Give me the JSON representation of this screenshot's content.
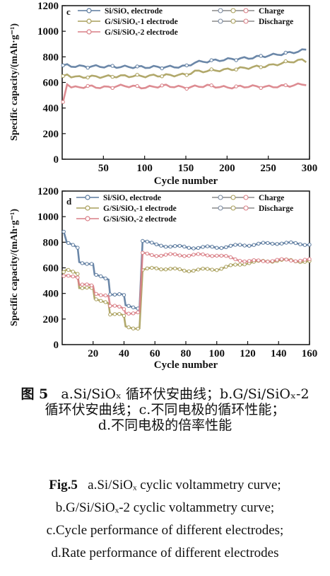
{
  "chart_data": [
    {
      "type": "line",
      "panel_label": "c",
      "xlabel": "Cycle number",
      "ylabel": "Specific capacity/(mAh·g⁻¹)",
      "xlim": [
        0,
        300
      ],
      "ylim": [
        0,
        1200
      ],
      "xticks": [
        50,
        100,
        150,
        200,
        250,
        300
      ],
      "yticks": [
        0,
        200,
        400,
        600,
        800,
        1000,
        1200
      ],
      "legend_placement": "top",
      "legend": {
        "electrodes": [
          "Si/SiOₓ electrode",
          "G/Si/SiOₓ-1 electrode",
          "G/Si/SiOₓ-2 electrode"
        ],
        "modes": [
          "Charge",
          "Discharge"
        ]
      },
      "colors": {
        "blue": "#5b7a9e",
        "olive": "#a99f5b",
        "pink": "#d97f86"
      },
      "series": [
        {
          "color": "blue",
          "x": [
            1,
            5,
            10,
            20,
            30,
            50,
            75,
            100,
            125,
            150,
            160,
            175,
            200,
            225,
            250,
            275,
            300
          ],
          "y": [
            730,
            735,
            730,
            725,
            725,
            725,
            722,
            720,
            720,
            725,
            755,
            765,
            780,
            790,
            810,
            830,
            860
          ]
        },
        {
          "color": "olive",
          "x": [
            1,
            5,
            10,
            20,
            30,
            50,
            75,
            100,
            125,
            150,
            160,
            175,
            200,
            225,
            250,
            275,
            290,
            300
          ],
          "y": [
            640,
            665,
            650,
            640,
            645,
            645,
            650,
            650,
            655,
            660,
            685,
            690,
            700,
            715,
            730,
            760,
            775,
            760
          ]
        },
        {
          "color": "pink",
          "x": [
            1,
            3,
            5,
            8,
            12,
            20,
            30,
            50,
            75,
            100,
            125,
            150,
            175,
            200,
            225,
            250,
            275,
            300
          ],
          "y": [
            440,
            540,
            600,
            580,
            560,
            560,
            570,
            560,
            575,
            560,
            575,
            560,
            575,
            560,
            570,
            565,
            575,
            590
          ]
        }
      ]
    },
    {
      "type": "line",
      "panel_label": "d",
      "xlabel": "Cycle number",
      "ylabel": "Specific capacity/(mAh·g⁻¹)",
      "xlim": [
        0,
        160
      ],
      "ylim": [
        0,
        1200
      ],
      "xticks": [
        20,
        40,
        60,
        80,
        100,
        120,
        140,
        160
      ],
      "yticks": [
        0,
        200,
        400,
        600,
        800,
        1000,
        1200
      ],
      "legend_placement": "top",
      "legend": {
        "electrodes": [
          "Si/SiOₓ electrode",
          "G/Si/SiOₓ-1 electrode",
          "G/Si/SiOₓ-2 electrode"
        ],
        "modes": [
          "Charge",
          "Discharge"
        ]
      },
      "colors": {
        "blue": "#5b7a9e",
        "olive": "#a99f5b",
        "pink": "#d97f86"
      },
      "series": [
        {
          "color": "blue",
          "x": [
            1,
            3,
            8,
            10,
            11,
            18,
            20,
            21,
            28,
            30,
            31,
            38,
            40,
            41,
            49,
            50,
            52,
            60,
            80,
            100,
            120,
            140,
            160
          ],
          "y": [
            880,
            790,
            770,
            760,
            650,
            630,
            625,
            540,
            520,
            515,
            400,
            390,
            380,
            300,
            290,
            290,
            815,
            780,
            760,
            760,
            780,
            795,
            785
          ]
        },
        {
          "color": "olive",
          "x": [
            1,
            3,
            8,
            10,
            11,
            18,
            20,
            21,
            28,
            30,
            31,
            38,
            40,
            41,
            49,
            50,
            52,
            60,
            80,
            100,
            120,
            140,
            160
          ],
          "y": [
            560,
            580,
            570,
            560,
            450,
            440,
            430,
            350,
            340,
            330,
            240,
            230,
            220,
            140,
            130,
            130,
            580,
            600,
            580,
            590,
            640,
            660,
            650
          ]
        },
        {
          "color": "pink",
          "x": [
            1,
            3,
            8,
            10,
            11,
            18,
            20,
            21,
            28,
            30,
            31,
            38,
            40,
            41,
            49,
            50,
            52,
            60,
            80,
            100,
            120,
            140,
            160
          ],
          "y": [
            530,
            540,
            540,
            530,
            470,
            460,
            455,
            400,
            390,
            380,
            300,
            290,
            280,
            250,
            250,
            250,
            710,
            700,
            700,
            700,
            650,
            660,
            660
          ]
        }
      ]
    }
  ],
  "captions": {
    "zh_label": "图 5",
    "zh_line1": "a.Si/SiOₓ 循环伏安曲线；b.G/Si/SiOₓ-2",
    "zh_line2": "循环伏安曲线；c.不同电极的循环性能；",
    "zh_line3": "d.不同电极的倍率性能",
    "en_label": "Fig.5",
    "en_line1": "a.Si/SiOₓ cyclic voltammetry curve;",
    "en_line2": "b.G/Si/SiOₓ-2 cyclic voltammetry curve;",
    "en_line3": "c.Cycle performance of different electrodes;",
    "en_line4": "d.Rate performance of different electrodes"
  }
}
